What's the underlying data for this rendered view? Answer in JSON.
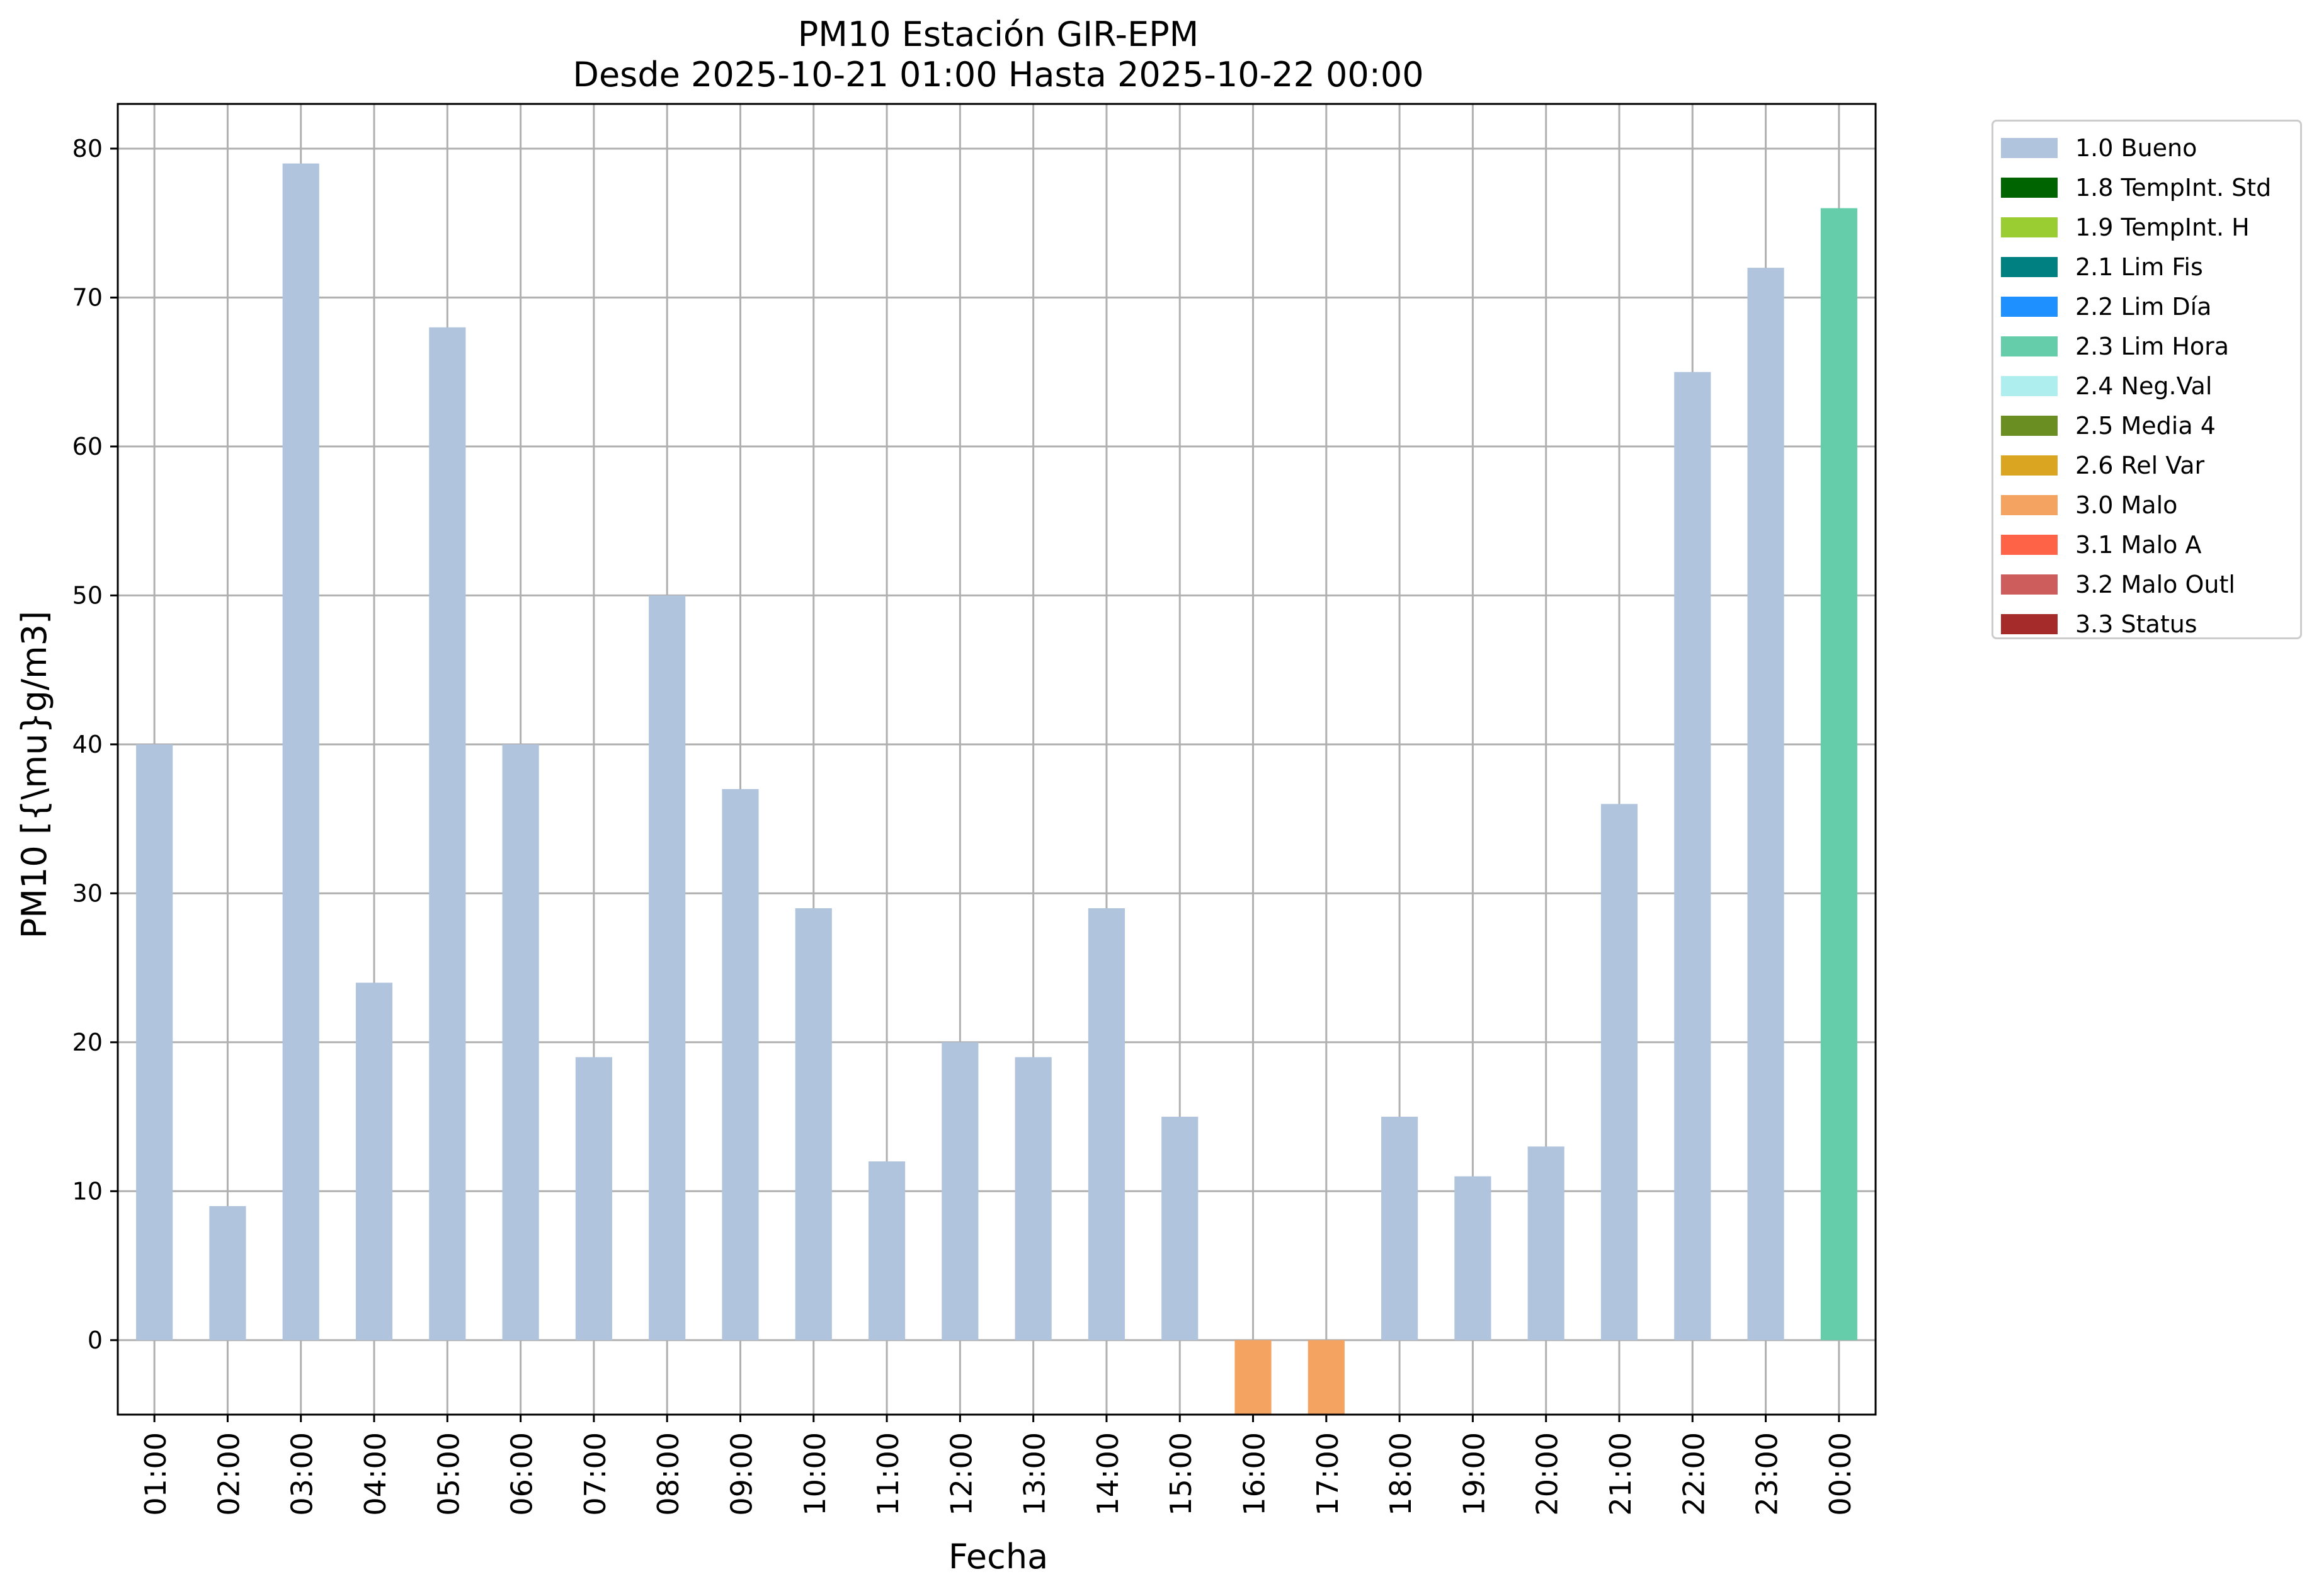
{
  "chart_data": {
    "type": "bar",
    "title": "PM10 Estación GIR-EPM",
    "subtitle": "Desde 2025-10-21 01:00 Hasta 2025-10-22 00:00",
    "xlabel": "Fecha",
    "ylabel": "PM10 [{\\mu}g/m3]",
    "ylim": [
      -5,
      83
    ],
    "yticks": [
      0,
      10,
      20,
      30,
      40,
      50,
      60,
      70,
      80
    ],
    "grid": true,
    "legend_position": "outside-top-right",
    "categories": [
      "01:00",
      "02:00",
      "03:00",
      "04:00",
      "05:00",
      "06:00",
      "07:00",
      "08:00",
      "09:00",
      "10:00",
      "11:00",
      "12:00",
      "13:00",
      "14:00",
      "15:00",
      "16:00",
      "17:00",
      "18:00",
      "19:00",
      "20:00",
      "21:00",
      "22:00",
      "23:00",
      "00:00"
    ],
    "values": [
      40,
      9,
      79,
      24,
      68,
      40,
      19,
      50,
      37,
      29,
      12,
      20,
      19,
      29,
      15,
      -5,
      -5,
      15,
      11,
      13,
      36,
      65,
      72,
      76
    ],
    "flags": [
      "1.0 Bueno",
      "1.0 Bueno",
      "1.0 Bueno",
      "1.0 Bueno",
      "1.0 Bueno",
      "1.0 Bueno",
      "1.0 Bueno",
      "1.0 Bueno",
      "1.0 Bueno",
      "1.0 Bueno",
      "1.0 Bueno",
      "1.0 Bueno",
      "1.0 Bueno",
      "1.0 Bueno",
      "1.0 Bueno",
      "3.0 Malo",
      "3.0 Malo",
      "1.0 Bueno",
      "1.0 Bueno",
      "1.0 Bueno",
      "1.0 Bueno",
      "1.0 Bueno",
      "1.0 Bueno",
      "2.3 Lim Hora"
    ],
    "legend": [
      {
        "label": "1.0 Bueno",
        "color": "#b0c4de"
      },
      {
        "label": "1.8 TempInt. Std",
        "color": "#006400"
      },
      {
        "label": "1.9 TempInt. H",
        "color": "#9acd32"
      },
      {
        "label": "2.1 Lim Fis",
        "color": "#008080"
      },
      {
        "label": "2.2 Lim Día",
        "color": "#1e90ff"
      },
      {
        "label": "2.3 Lim Hora",
        "color": "#66cdaa"
      },
      {
        "label": "2.4 Neg.Val",
        "color": "#afeeee"
      },
      {
        "label": "2.5 Media 4",
        "color": "#6b8e23"
      },
      {
        "label": "2.6 Rel Var",
        "color": "#daa520"
      },
      {
        "label": "3.0 Malo",
        "color": "#f4a460"
      },
      {
        "label": "3.1 Malo A",
        "color": "#ff6347"
      },
      {
        "label": "3.2 Malo Outl",
        "color": "#cd5c5c"
      },
      {
        "label": "3.3 Status",
        "color": "#a52a2a"
      }
    ]
  }
}
